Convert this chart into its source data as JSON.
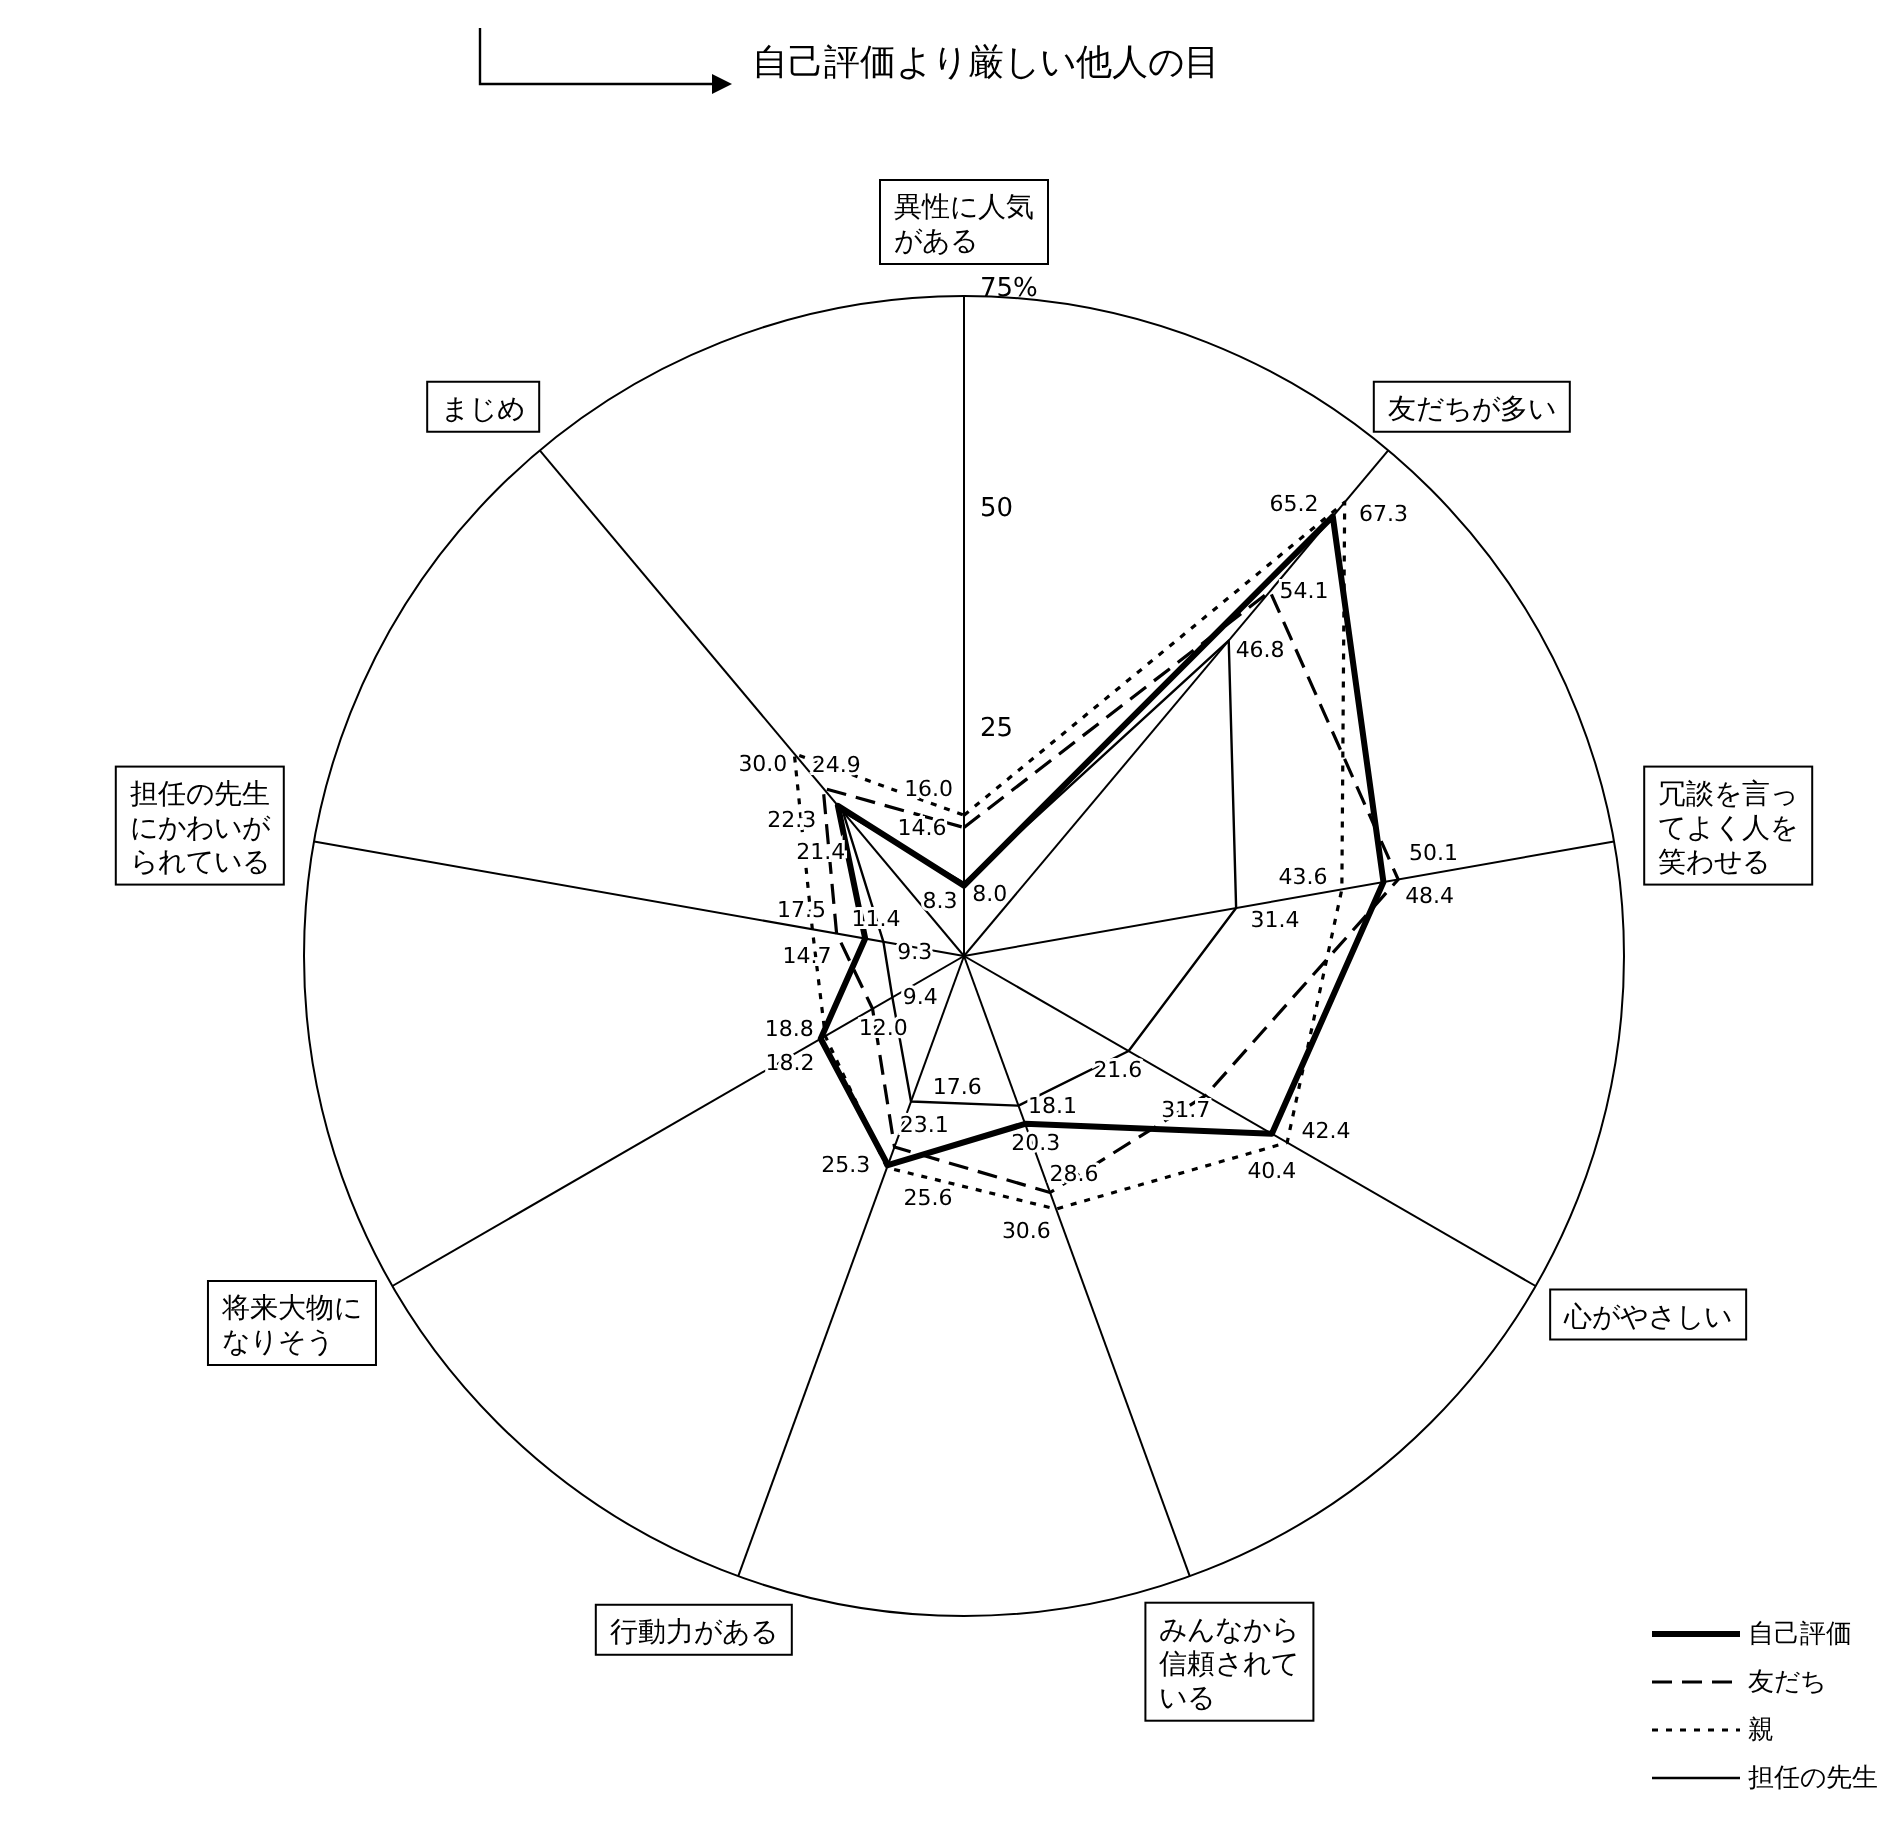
{
  "chart_data": {
    "type": "radar",
    "title": "自己評価より厳しい他人の目",
    "categories": [
      "異性に人気がある",
      "友だちが多い",
      "冗談を言ってよく人を笑わせる",
      "心がやさしい",
      "みんなから信頼されている",
      "行動力がある",
      "将来大物になりそう",
      "担任の先生にかわいがられている",
      "まじめ"
    ],
    "series": [
      {
        "name": "自己評価",
        "color": "#000000",
        "line_style": "solid",
        "values": [
          8.0,
          65.2,
          48.4,
          40.4,
          20.3,
          25.3,
          18.8,
          11.4,
          22.3
        ],
        "value_labels": [
          "8.0",
          "65.2",
          "48.4",
          "40.4",
          "20.3",
          "25.3",
          "18.8",
          "11.4",
          "22.3"
        ]
      },
      {
        "name": "友だち",
        "color": "#000000",
        "line_style": "dashed",
        "values": [
          14.6,
          54.1,
          50.1,
          31.7,
          28.6,
          23.1,
          12.0,
          14.7,
          24.9
        ],
        "value_labels": [
          "14.6",
          "54.1",
          "50.1",
          "31.7",
          "28.6",
          "23.1",
          "12.0",
          "14.7",
          "24.9"
        ]
      },
      {
        "name": "親",
        "color": "#000000",
        "line_style": "dotted",
        "values": [
          16.0,
          67.3,
          43.6,
          42.4,
          30.6,
          25.6,
          18.2,
          17.5,
          30.0
        ],
        "value_labels": [
          "16.0",
          "67.3",
          "43.6",
          "42.4",
          "30.6",
          "25.6",
          "18.2",
          "17.5",
          "30.0"
        ]
      },
      {
        "name": "担任の先生",
        "color": "#000000",
        "line_style": "solid",
        "values": [
          8.3,
          46.8,
          31.4,
          21.6,
          18.1,
          17.6,
          9.4,
          9.3,
          21.4
        ],
        "value_labels": [
          "8.3",
          "46.8",
          "31.4",
          "21.6",
          "18.1",
          "17.6",
          "9.4",
          "9.3",
          "21.4"
        ]
      }
    ],
    "ylim": [
      0,
      75
    ],
    "yticks": [
      25,
      50,
      {
        "value": 75,
        "label": "75%"
      }
    ],
    "legend": "bottom right"
  }
}
